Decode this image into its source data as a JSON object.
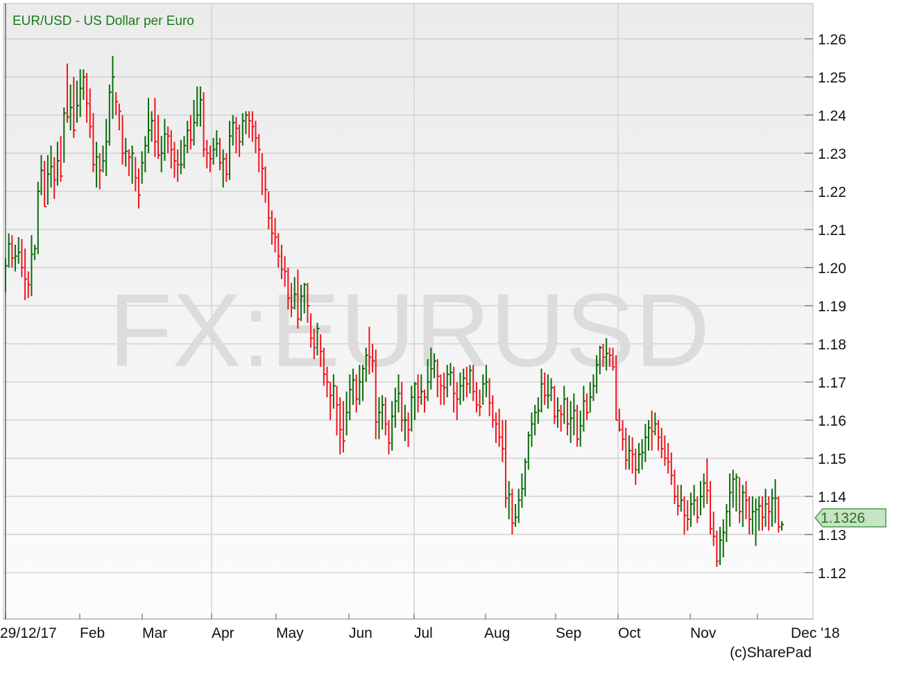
{
  "chart_data": {
    "type": "ohlc-bar",
    "title": "EUR/USD - US Dollar per Euro",
    "watermark": "FX:EURUSD",
    "credit": "(c)SharePad",
    "last_price": "1.1326",
    "ylim": [
      1.1078,
      1.2693
    ],
    "y_ticks": [
      "1.12",
      "1.13",
      "1.14",
      "1.15",
      "1.16",
      "1.17",
      "1.18",
      "1.19",
      "1.20",
      "1.21",
      "1.22",
      "1.23",
      "1.24",
      "1.25",
      "1.26"
    ],
    "x_tick_labels": [
      "29/12/17",
      "Feb",
      "Mar",
      "Apr",
      "May",
      "Jun",
      "Jul",
      "Aug",
      "Sep",
      "Oct",
      "Nov",
      "Dec '18"
    ],
    "grid": true,
    "colors": {
      "up": "#0a6b0a",
      "down": "#f0141e",
      "title": "#1a7a1a",
      "tag_fill": "#c6e3c2",
      "tag_border": "#4c9a4c"
    },
    "bar_fields": [
      "high",
      "low",
      "close"
    ],
    "bars": [
      [
        1.2025,
        1.1935,
        1.2005
      ],
      [
        1.209,
        1.2,
        1.2062
      ],
      [
        1.2085,
        1.2,
        1.2025
      ],
      [
        1.206,
        1.199,
        1.203
      ],
      [
        1.208,
        1.201,
        1.204
      ],
      [
        1.2075,
        1.1975,
        1.2
      ],
      [
        1.205,
        1.1915,
        1.197
      ],
      [
        1.199,
        1.192,
        1.1955
      ],
      [
        1.2085,
        1.1925,
        1.2035
      ],
      [
        1.206,
        1.202,
        1.205
      ],
      [
        1.2225,
        1.2035,
        1.22
      ],
      [
        1.2295,
        1.219,
        1.2255
      ],
      [
        1.228,
        1.216,
        1.216
      ],
      [
        1.2295,
        1.2165,
        1.2245
      ],
      [
        1.232,
        1.221,
        1.2265
      ],
      [
        1.229,
        1.218,
        1.223
      ],
      [
        1.233,
        1.2215,
        1.228
      ],
      [
        1.2345,
        1.2225,
        1.224
      ],
      [
        1.242,
        1.2275,
        1.2405
      ],
      [
        1.2535,
        1.238,
        1.2395
      ],
      [
        1.248,
        1.236,
        1.242
      ],
      [
        1.25,
        1.234,
        1.236
      ],
      [
        1.249,
        1.238,
        1.2425
      ],
      [
        1.252,
        1.2395,
        1.247
      ],
      [
        1.252,
        1.244,
        1.25
      ],
      [
        1.251,
        1.238,
        1.243
      ],
      [
        1.247,
        1.234,
        1.237
      ],
      [
        1.2405,
        1.225,
        1.227
      ],
      [
        1.233,
        1.221,
        1.229
      ],
      [
        1.23,
        1.2205,
        1.2255
      ],
      [
        1.232,
        1.225,
        1.228
      ],
      [
        1.239,
        1.224,
        1.233
      ],
      [
        1.248,
        1.232,
        1.246
      ],
      [
        1.2555,
        1.239,
        1.25
      ],
      [
        1.246,
        1.24,
        1.2435
      ],
      [
        1.243,
        1.236,
        1.241
      ],
      [
        1.24,
        1.227,
        1.23
      ],
      [
        1.234,
        1.2265,
        1.2305
      ],
      [
        1.231,
        1.224,
        1.229
      ],
      [
        1.232,
        1.222,
        1.23
      ],
      [
        1.229,
        1.22,
        1.2235
      ],
      [
        1.226,
        1.2155,
        1.219
      ],
      [
        1.2305,
        1.222,
        1.2275
      ],
      [
        1.2345,
        1.225,
        1.232
      ],
      [
        1.2445,
        1.23,
        1.236
      ],
      [
        1.241,
        1.233,
        1.2385
      ],
      [
        1.2445,
        1.229,
        1.233
      ],
      [
        1.24,
        1.2285,
        1.2295
      ],
      [
        1.2345,
        1.225,
        1.23
      ],
      [
        1.239,
        1.228,
        1.235
      ],
      [
        1.237,
        1.23,
        1.2345
      ],
      [
        1.236,
        1.226,
        1.231
      ],
      [
        1.233,
        1.2235,
        1.228
      ],
      [
        1.231,
        1.2225,
        1.227
      ],
      [
        1.2335,
        1.2245,
        1.227
      ],
      [
        1.2345,
        1.226,
        1.232
      ],
      [
        1.2385,
        1.23,
        1.236
      ],
      [
        1.24,
        1.231,
        1.2335
      ],
      [
        1.244,
        1.232,
        1.238
      ],
      [
        1.2475,
        1.237,
        1.24
      ],
      [
        1.2475,
        1.237,
        1.244
      ],
      [
        1.246,
        1.229,
        1.231
      ],
      [
        1.2335,
        1.226,
        1.23
      ],
      [
        1.232,
        1.225,
        1.2285
      ],
      [
        1.234,
        1.227,
        1.231
      ],
      [
        1.236,
        1.229,
        1.2325
      ],
      [
        1.234,
        1.2255,
        1.2275
      ],
      [
        1.231,
        1.221,
        1.2285
      ],
      [
        1.23,
        1.2225,
        1.2245
      ],
      [
        1.2385,
        1.223,
        1.2345
      ],
      [
        1.24,
        1.232,
        1.238
      ],
      [
        1.2395,
        1.23,
        1.2365
      ],
      [
        1.2375,
        1.229,
        1.233
      ],
      [
        1.2405,
        1.232,
        1.2385
      ],
      [
        1.241,
        1.235,
        1.24
      ],
      [
        1.241,
        1.234,
        1.2385
      ],
      [
        1.241,
        1.233,
        1.237
      ],
      [
        1.2385,
        1.23,
        1.234
      ],
      [
        1.235,
        1.225,
        1.231
      ],
      [
        1.23,
        1.219,
        1.226
      ],
      [
        1.2265,
        1.217,
        1.2205
      ],
      [
        1.22,
        1.21,
        1.213
      ],
      [
        1.215,
        1.206,
        1.209
      ],
      [
        1.213,
        1.204,
        1.208
      ],
      [
        1.209,
        1.2,
        1.203
      ],
      [
        1.206,
        1.197,
        1.1995
      ],
      [
        1.203,
        1.195,
        1.199
      ],
      [
        1.2,
        1.189,
        1.192
      ],
      [
        1.196,
        1.187,
        1.1895
      ],
      [
        1.1975,
        1.189,
        1.193
      ],
      [
        1.1995,
        1.184,
        1.1865
      ],
      [
        1.1955,
        1.186,
        1.1925
      ],
      [
        1.196,
        1.188,
        1.1955
      ],
      [
        1.196,
        1.1855,
        1.19
      ],
      [
        1.188,
        1.179,
        1.1815
      ],
      [
        1.184,
        1.176,
        1.179
      ],
      [
        1.1855,
        1.177,
        1.184
      ],
      [
        1.1825,
        1.174,
        1.178
      ],
      [
        1.179,
        1.169,
        1.172
      ],
      [
        1.174,
        1.166,
        1.17
      ],
      [
        1.17,
        1.16,
        1.1665
      ],
      [
        1.172,
        1.163,
        1.169
      ],
      [
        1.169,
        1.156,
        1.164
      ],
      [
        1.166,
        1.151,
        1.1575
      ],
      [
        1.165,
        1.1515,
        1.1545
      ],
      [
        1.1675,
        1.156,
        1.162
      ],
      [
        1.172,
        1.16,
        1.168
      ],
      [
        1.1735,
        1.164,
        1.1705
      ],
      [
        1.172,
        1.162,
        1.1655
      ],
      [
        1.1745,
        1.164,
        1.17
      ],
      [
        1.1745,
        1.165,
        1.1735
      ],
      [
        1.179,
        1.17,
        1.177
      ],
      [
        1.1845,
        1.172,
        1.1765
      ],
      [
        1.18,
        1.1725,
        1.1755
      ],
      [
        1.1785,
        1.155,
        1.1595
      ],
      [
        1.166,
        1.155,
        1.162
      ],
      [
        1.1665,
        1.1575,
        1.164
      ],
      [
        1.166,
        1.156,
        1.159
      ],
      [
        1.16,
        1.151,
        1.154
      ],
      [
        1.165,
        1.152,
        1.161
      ],
      [
        1.1685,
        1.158,
        1.165
      ],
      [
        1.172,
        1.162,
        1.167
      ],
      [
        1.17,
        1.157,
        1.16
      ],
      [
        1.164,
        1.1545,
        1.16
      ],
      [
        1.162,
        1.153,
        1.1575
      ],
      [
        1.169,
        1.157,
        1.166
      ],
      [
        1.17,
        1.16,
        1.1695
      ],
      [
        1.172,
        1.162,
        1.166
      ],
      [
        1.172,
        1.164,
        1.1675
      ],
      [
        1.168,
        1.162,
        1.166
      ],
      [
        1.176,
        1.165,
        1.17
      ],
      [
        1.179,
        1.168,
        1.1735
      ],
      [
        1.1775,
        1.171,
        1.1755
      ],
      [
        1.176,
        1.166,
        1.1715
      ],
      [
        1.172,
        1.164,
        1.169
      ],
      [
        1.1725,
        1.164,
        1.1685
      ],
      [
        1.1745,
        1.166,
        1.172
      ],
      [
        1.175,
        1.169,
        1.1725
      ],
      [
        1.174,
        1.162,
        1.167
      ],
      [
        1.17,
        1.16,
        1.1655
      ],
      [
        1.1725,
        1.164,
        1.169
      ],
      [
        1.1735,
        1.165,
        1.171
      ],
      [
        1.174,
        1.166,
        1.1695
      ],
      [
        1.1745,
        1.167,
        1.173
      ],
      [
        1.1745,
        1.165,
        1.1675
      ],
      [
        1.17,
        1.162,
        1.164
      ],
      [
        1.168,
        1.161,
        1.1635
      ],
      [
        1.172,
        1.164,
        1.1695
      ],
      [
        1.1745,
        1.166,
        1.17
      ],
      [
        1.171,
        1.161,
        1.1645
      ],
      [
        1.1665,
        1.158,
        1.16
      ],
      [
        1.162,
        1.154,
        1.159
      ],
      [
        1.163,
        1.153,
        1.1555
      ],
      [
        1.16,
        1.149,
        1.1525
      ],
      [
        1.16,
        1.137,
        1.1395
      ],
      [
        1.144,
        1.134,
        1.1405
      ],
      [
        1.142,
        1.13,
        1.133
      ],
      [
        1.138,
        1.132,
        1.1345
      ],
      [
        1.142,
        1.133,
        1.139
      ],
      [
        1.146,
        1.137,
        1.142
      ],
      [
        1.15,
        1.14,
        1.149
      ],
      [
        1.157,
        1.147,
        1.156
      ],
      [
        1.162,
        1.153,
        1.159
      ],
      [
        1.164,
        1.156,
        1.162
      ],
      [
        1.166,
        1.159,
        1.1625
      ],
      [
        1.1735,
        1.162,
        1.1695
      ],
      [
        1.1725,
        1.164,
        1.1665
      ],
      [
        1.172,
        1.163,
        1.1665
      ],
      [
        1.171,
        1.165,
        1.1685
      ],
      [
        1.169,
        1.159,
        1.161
      ],
      [
        1.166,
        1.158,
        1.1625
      ],
      [
        1.164,
        1.157,
        1.1615
      ],
      [
        1.169,
        1.159,
        1.1655
      ],
      [
        1.166,
        1.156,
        1.159
      ],
      [
        1.165,
        1.154,
        1.1605
      ],
      [
        1.167,
        1.156,
        1.1625
      ],
      [
        1.164,
        1.153,
        1.155
      ],
      [
        1.1625,
        1.153,
        1.1585
      ],
      [
        1.169,
        1.157,
        1.165
      ],
      [
        1.167,
        1.16,
        1.162
      ],
      [
        1.17,
        1.162,
        1.166
      ],
      [
        1.172,
        1.165,
        1.169
      ],
      [
        1.177,
        1.167,
        1.1745
      ],
      [
        1.1795,
        1.172,
        1.179
      ],
      [
        1.18,
        1.174,
        1.1765
      ],
      [
        1.1815,
        1.173,
        1.1775
      ],
      [
        1.179,
        1.174,
        1.177
      ],
      [
        1.179,
        1.173,
        1.174
      ],
      [
        1.177,
        1.16,
        1.16
      ],
      [
        1.163,
        1.157,
        1.1575
      ],
      [
        1.16,
        1.152,
        1.155
      ],
      [
        1.158,
        1.147,
        1.1495
      ],
      [
        1.156,
        1.147,
        1.152
      ],
      [
        1.1555,
        1.146,
        1.151
      ],
      [
        1.1525,
        1.143,
        1.147
      ],
      [
        1.154,
        1.146,
        1.151
      ],
      [
        1.155,
        1.147,
        1.1515
      ],
      [
        1.159,
        1.149,
        1.1555
      ],
      [
        1.16,
        1.152,
        1.158
      ],
      [
        1.1625,
        1.152,
        1.157
      ],
      [
        1.162,
        1.156,
        1.159
      ],
      [
        1.16,
        1.152,
        1.1555
      ],
      [
        1.158,
        1.15,
        1.1525
      ],
      [
        1.156,
        1.148,
        1.15
      ],
      [
        1.154,
        1.146,
        1.149
      ],
      [
        1.1515,
        1.143,
        1.1455
      ],
      [
        1.147,
        1.138,
        1.14
      ],
      [
        1.143,
        1.135,
        1.1375
      ],
      [
        1.143,
        1.136,
        1.139
      ],
      [
        1.14,
        1.13,
        1.135
      ],
      [
        1.139,
        1.131,
        1.134
      ],
      [
        1.141,
        1.132,
        1.138
      ],
      [
        1.143,
        1.135,
        1.139
      ],
      [
        1.14,
        1.133,
        1.1345
      ],
      [
        1.144,
        1.135,
        1.14
      ],
      [
        1.146,
        1.137,
        1.1435
      ],
      [
        1.15,
        1.138,
        1.1415
      ],
      [
        1.144,
        1.13,
        1.1315
      ],
      [
        1.136,
        1.127,
        1.1295
      ],
      [
        1.131,
        1.1215,
        1.123
      ],
      [
        1.132,
        1.122,
        1.1285
      ],
      [
        1.134,
        1.124,
        1.1305
      ],
      [
        1.138,
        1.128,
        1.136
      ],
      [
        1.146,
        1.132,
        1.141
      ],
      [
        1.147,
        1.137,
        1.1445
      ],
      [
        1.146,
        1.136,
        1.145
      ],
      [
        1.145,
        1.133,
        1.136
      ],
      [
        1.143,
        1.132,
        1.141
      ],
      [
        1.144,
        1.134,
        1.139
      ],
      [
        1.14,
        1.13,
        1.134
      ],
      [
        1.14,
        1.13,
        1.136
      ],
      [
        1.1395,
        1.127,
        1.1365
      ],
      [
        1.14,
        1.131,
        1.1375
      ],
      [
        1.14,
        1.131,
        1.1345
      ],
      [
        1.142,
        1.132,
        1.138
      ],
      [
        1.14,
        1.131,
        1.136
      ],
      [
        1.142,
        1.132,
        1.1395
      ],
      [
        1.1445,
        1.133,
        1.1395
      ],
      [
        1.14,
        1.1305,
        1.132
      ],
      [
        1.1335,
        1.131,
        1.1326
      ]
    ]
  }
}
